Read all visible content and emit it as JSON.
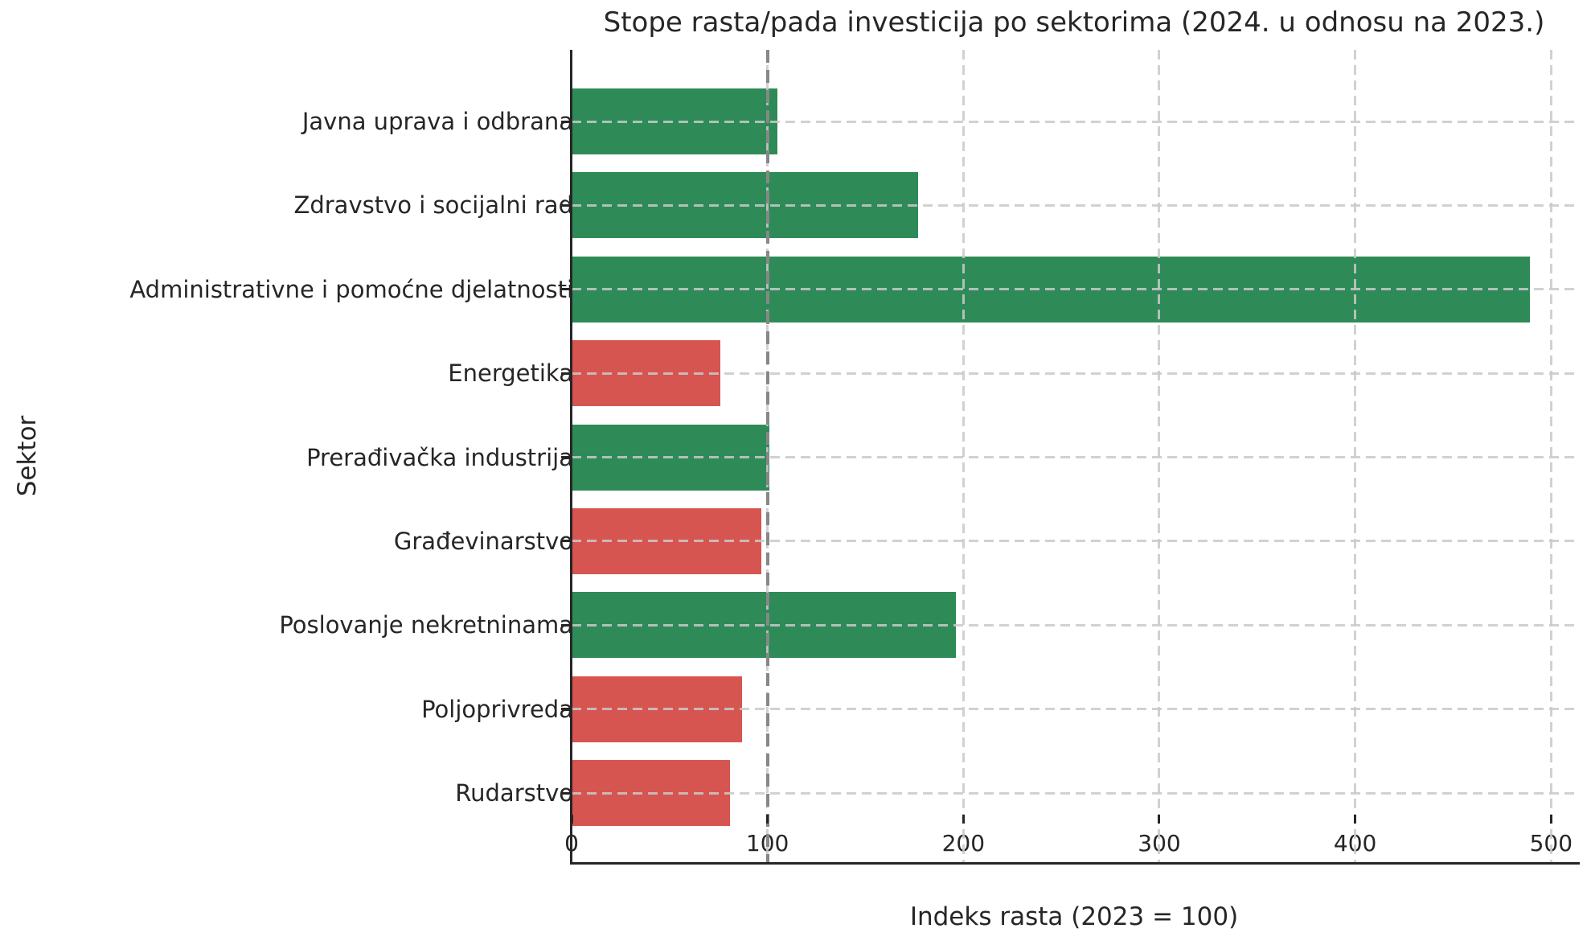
{
  "chart_data": {
    "type": "bar",
    "orientation": "horizontal",
    "title": "Stope rasta/pada investicija po sektorima (2024. u odnosu na 2023.)",
    "xlabel": "Indeks rasta (2023 = 100)",
    "ylabel": "Sektor",
    "categories": [
      "Javna uprava i odbrana",
      "Zdravstvo i socijalni rad",
      "Administrativne i pomoćne djelatnosti",
      "Energetika",
      "Prerađivačka industrija",
      "Građevinarstvo",
      "Poslovanje nekretninama",
      "Poljoprivreda",
      "Rudarstvo"
    ],
    "values": [
      105,
      177,
      489,
      76,
      101,
      97,
      196,
      87,
      81
    ],
    "bar_colors": [
      "#2e8b57",
      "#2e8b57",
      "#2e8b57",
      "#d65550",
      "#2e8b57",
      "#d65550",
      "#2e8b57",
      "#d65550",
      "#d65550"
    ],
    "x_ticks": [
      0,
      100,
      200,
      300,
      400,
      500
    ],
    "x_tick_labels": [
      "0",
      "100",
      "200",
      "300",
      "400",
      "500"
    ],
    "xlim": [
      0,
      513
    ],
    "reference_line_x": 100,
    "grid": "dashed light-gray horizontal and vertical gridlines drawn above bars",
    "legend": "none"
  },
  "colors": {
    "growth_green": "#2e8b57",
    "decline_red": "#d65550",
    "grid_line": "#c9c9c9",
    "reference_line": "#878787",
    "text": "#262626",
    "axis_spine": "#262626",
    "background": "#ffffff"
  }
}
